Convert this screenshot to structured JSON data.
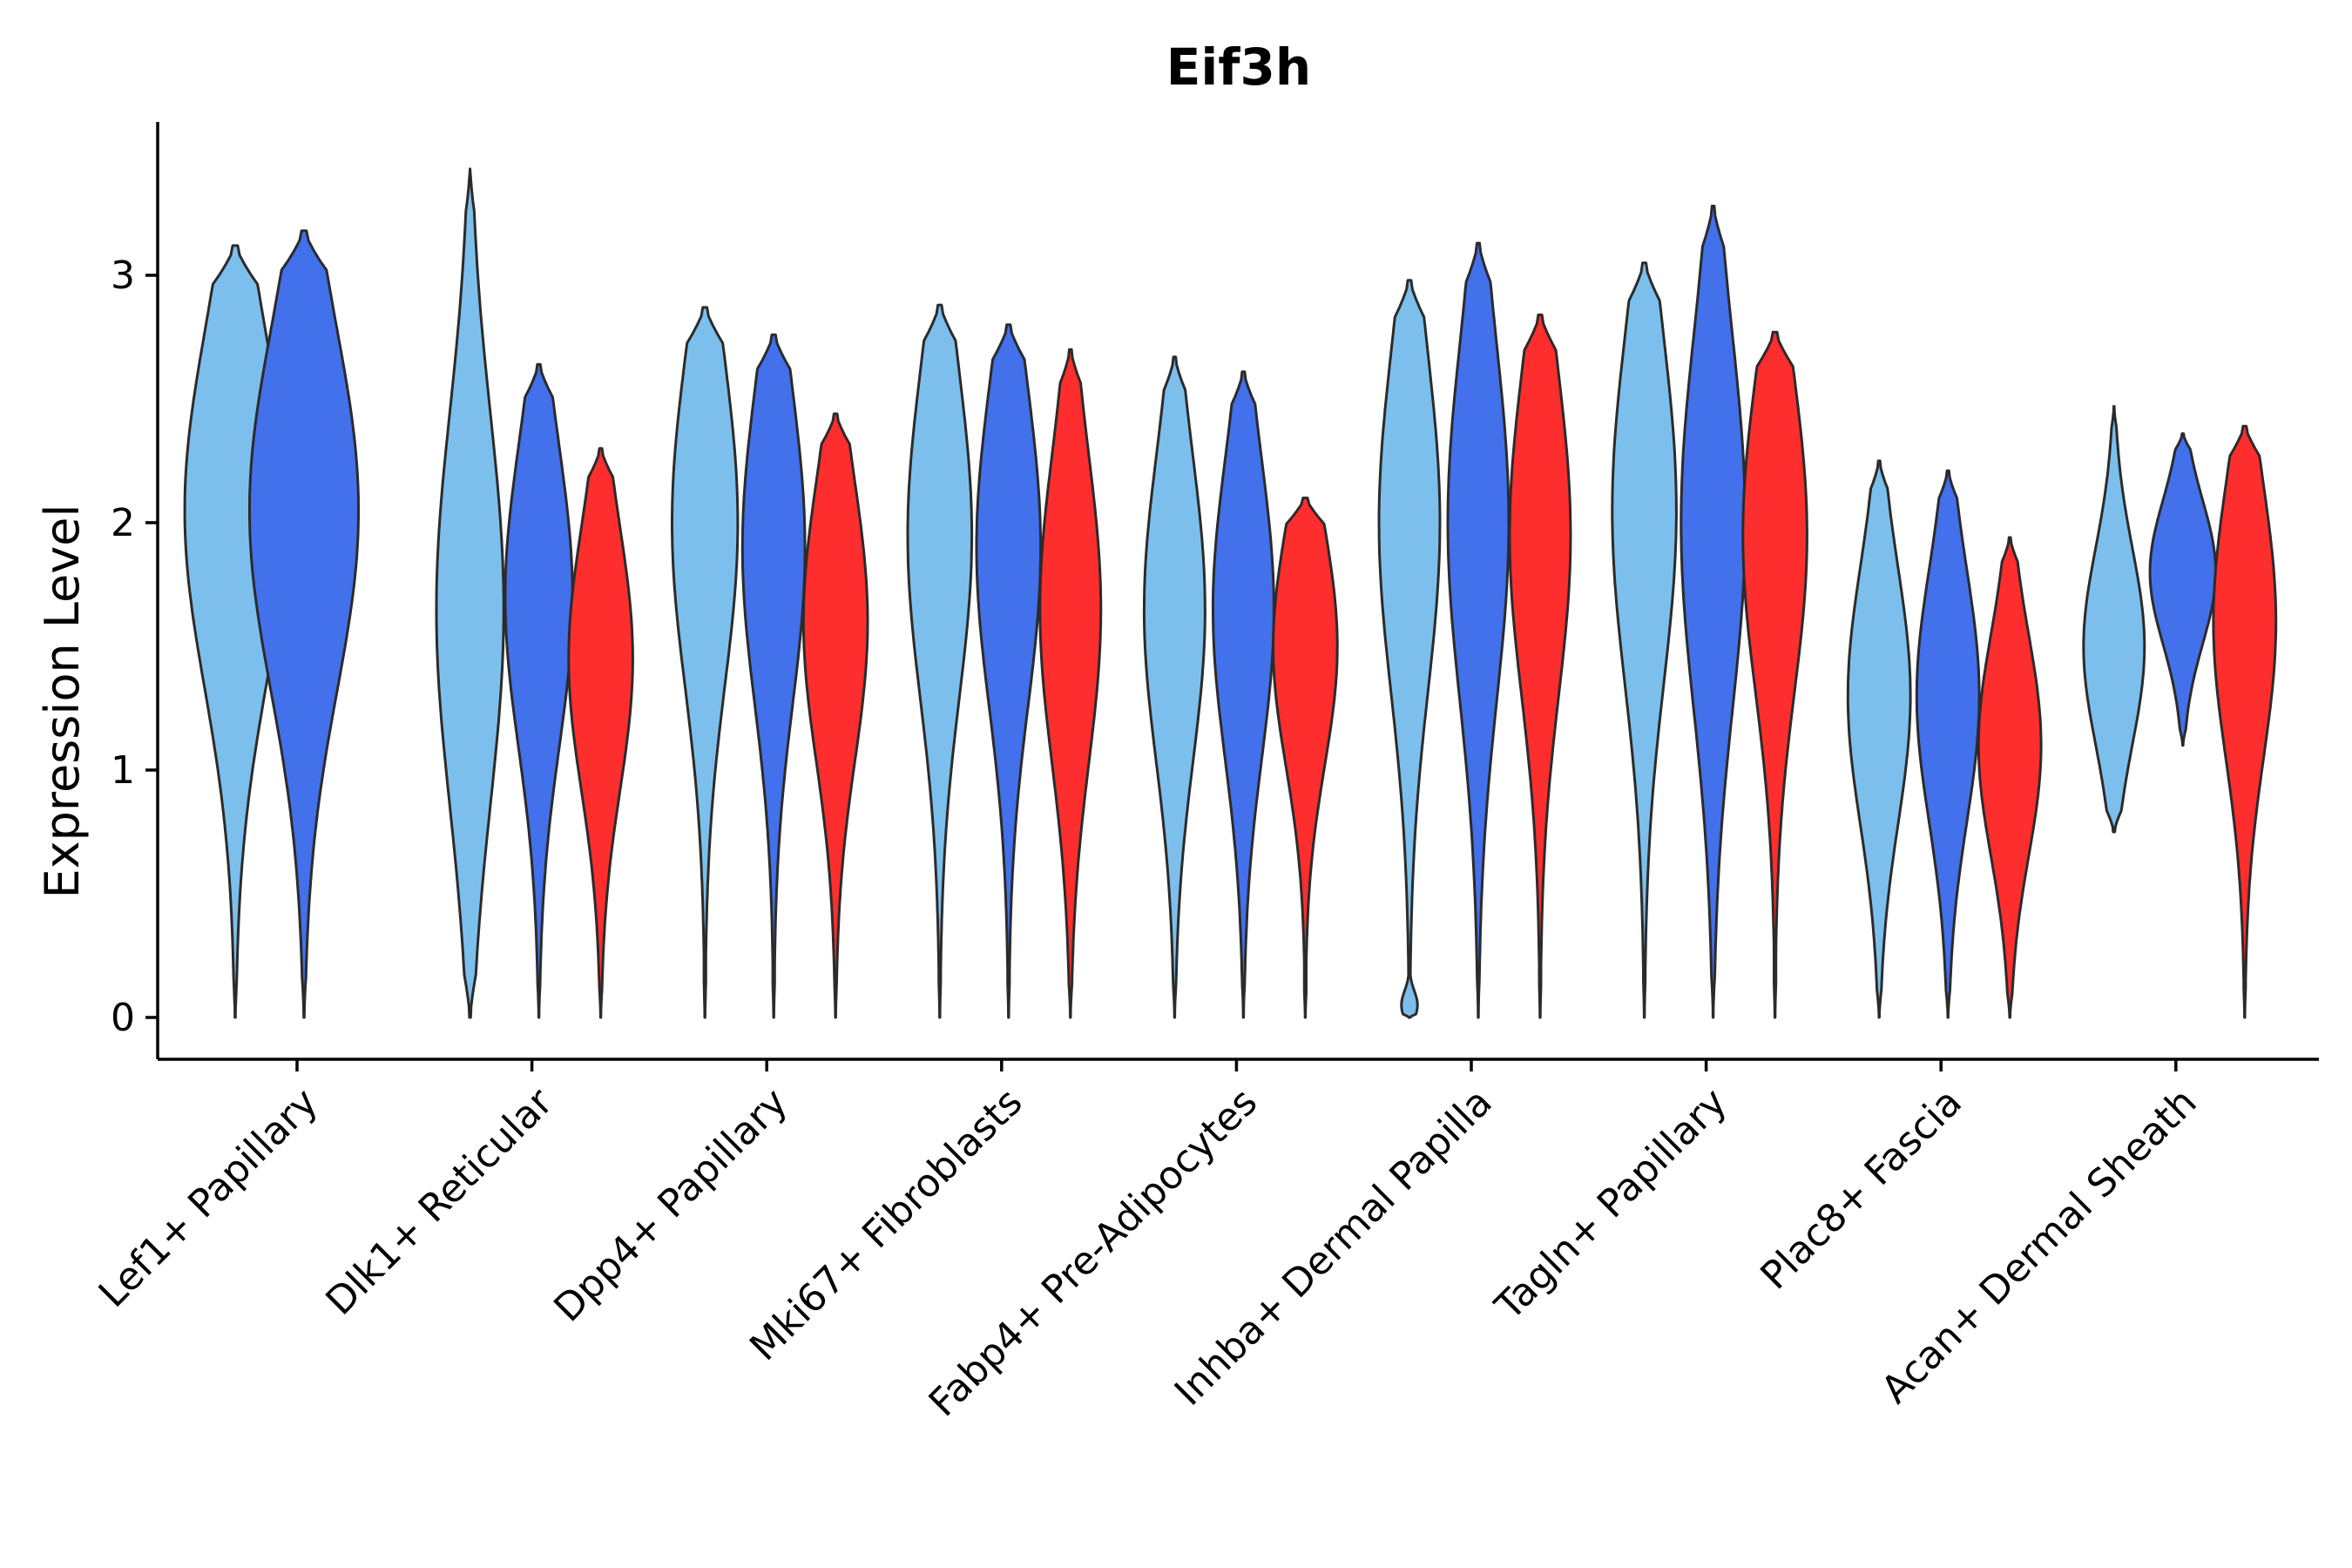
{
  "chart_data": {
    "type": "violin",
    "title": "Eif3h",
    "xlabel": "",
    "ylabel": "Expression Level",
    "ylim": [
      -0.17,
      3.6
    ],
    "yticks": [
      0,
      1,
      2,
      3
    ],
    "colors": {
      "group1": "#7DBFEC",
      "group2": "#4370EB",
      "group3": "#FF2E2E",
      "outline": "#2b2b2b"
    },
    "categories": [
      "Lef1+ Papillary",
      "Dlk1+ Reticular",
      "Dpp4+ Papillary",
      "Mki67+ Fibroblasts",
      "Fabp4+ Pre-Adipocytes",
      "Inhba+ Dermal Papilla",
      "Tagln+ Papillary",
      "Plac8+ Fascia",
      "Acan+ Dermal Sheath"
    ],
    "violins": [
      {
        "category": 0,
        "group": 1,
        "min": 0,
        "max": 3.12,
        "center": 2.05,
        "peak": 0.63
      },
      {
        "category": 0,
        "group": 2,
        "min": 0,
        "max": 3.18,
        "center": 2.05,
        "peak": 0.68
      },
      {
        "category": 1,
        "group": 1,
        "min": 0,
        "max": 3.43,
        "center": 1.65,
        "peak": 0.42
      },
      {
        "category": 1,
        "group": 2,
        "min": 0,
        "max": 2.64,
        "center": 1.7,
        "peak": 0.42
      },
      {
        "category": 1,
        "group": 3,
        "min": 0,
        "max": 2.3,
        "center": 1.45,
        "peak": 0.4
      },
      {
        "category": 2,
        "group": 1,
        "min": 0,
        "max": 2.87,
        "center": 2.0,
        "peak": 0.41
      },
      {
        "category": 2,
        "group": 2,
        "min": 0,
        "max": 2.76,
        "center": 1.9,
        "peak": 0.39
      },
      {
        "category": 2,
        "group": 3,
        "min": 0,
        "max": 2.44,
        "center": 1.6,
        "peak": 0.4
      },
      {
        "category": 3,
        "group": 1,
        "min": 0,
        "max": 2.88,
        "center": 1.95,
        "peak": 0.4
      },
      {
        "category": 3,
        "group": 2,
        "min": 0,
        "max": 2.8,
        "center": 1.9,
        "peak": 0.4
      },
      {
        "category": 3,
        "group": 3,
        "min": 0,
        "max": 2.7,
        "center": 1.65,
        "peak": 0.38
      },
      {
        "category": 4,
        "group": 1,
        "min": 0,
        "max": 2.67,
        "center": 1.65,
        "peak": 0.38
      },
      {
        "category": 4,
        "group": 2,
        "min": 0,
        "max": 2.61,
        "center": 1.65,
        "peak": 0.38
      },
      {
        "category": 4,
        "group": 3,
        "min": 0,
        "max": 2.1,
        "center": 1.5,
        "peak": 0.4
      },
      {
        "category": 5,
        "group": 1,
        "min": 0,
        "max": 2.98,
        "center": 2.0,
        "peak": 0.38
      },
      {
        "category": 5,
        "group": 2,
        "min": 0,
        "max": 3.13,
        "center": 2.0,
        "peak": 0.38
      },
      {
        "category": 5,
        "group": 3,
        "min": 0,
        "max": 2.84,
        "center": 1.95,
        "peak": 0.38
      },
      {
        "category": 5,
        "group": 1,
        "min": 0,
        "max": 0.25,
        "center": 0.05,
        "peak": 0.1,
        "note": "zero blob"
      },
      {
        "category": 6,
        "group": 1,
        "min": 0,
        "max": 3.05,
        "center": 2.05,
        "peak": 0.4
      },
      {
        "category": 6,
        "group": 2,
        "min": 0,
        "max": 3.28,
        "center": 2.0,
        "peak": 0.4
      },
      {
        "category": 6,
        "group": 3,
        "min": 0,
        "max": 2.77,
        "center": 1.95,
        "peak": 0.4
      },
      {
        "category": 7,
        "group": 1,
        "min": 0,
        "max": 2.25,
        "center": 1.3,
        "peak": 0.39
      },
      {
        "category": 7,
        "group": 2,
        "min": 0,
        "max": 2.21,
        "center": 1.3,
        "peak": 0.39
      },
      {
        "category": 7,
        "group": 3,
        "min": 0,
        "max": 1.94,
        "center": 1.1,
        "peak": 0.39
      },
      {
        "category": 8,
        "group": 1,
        "min": 0.75,
        "max": 2.47,
        "center": 1.5,
        "peak": 0.38
      },
      {
        "category": 8,
        "group": 2,
        "min": 1.1,
        "max": 2.36,
        "center": 1.8,
        "peak": 0.41
      },
      {
        "category": 8,
        "group": 3,
        "min": 0,
        "max": 2.39,
        "center": 1.6,
        "peak": 0.39
      }
    ]
  }
}
